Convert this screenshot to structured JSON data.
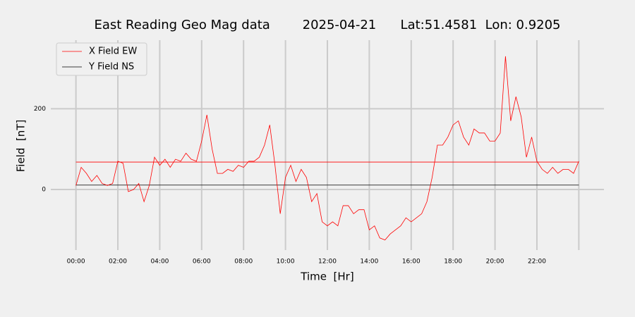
{
  "chart_data": {
    "type": "line",
    "title": "East Reading Geo Mag data        2025-04-21      Lat:51.4581  Lon: 0.9205",
    "xlabel": "Time  [Hr]",
    "ylabel": "Field  [nT]",
    "x": [
      0,
      0.25,
      0.5,
      0.75,
      1,
      1.25,
      1.5,
      1.75,
      2,
      2.25,
      2.5,
      2.75,
      3,
      3.25,
      3.5,
      3.75,
      4,
      4.25,
      4.5,
      4.75,
      5,
      5.25,
      5.5,
      5.75,
      6,
      6.25,
      6.5,
      6.75,
      7,
      7.25,
      7.5,
      7.75,
      8,
      8.25,
      8.5,
      8.75,
      9,
      9.25,
      9.5,
      9.75,
      10,
      10.25,
      10.5,
      10.75,
      11,
      11.25,
      11.5,
      11.75,
      12,
      12.25,
      12.5,
      12.75,
      13,
      13.25,
      13.5,
      13.75,
      14,
      14.25,
      14.5,
      14.75,
      15,
      15.25,
      15.5,
      15.75,
      16,
      16.25,
      16.5,
      16.75,
      17,
      17.25,
      17.5,
      17.75,
      18,
      18.25,
      18.5,
      18.75,
      19,
      19.25,
      19.5,
      19.75,
      20,
      20.25,
      20.5,
      20.75,
      21,
      21.25,
      21.5,
      21.75,
      22,
      22.25,
      22.5,
      22.75,
      23,
      23.25,
      23.5,
      23.75,
      24
    ],
    "series": [
      {
        "name": "X Field EW",
        "color": "#ff0000",
        "values": [
          10,
          55,
          40,
          20,
          35,
          15,
          10,
          15,
          70,
          65,
          -5,
          0,
          15,
          -30,
          10,
          80,
          60,
          75,
          55,
          75,
          70,
          90,
          75,
          70,
          120,
          185,
          100,
          40,
          40,
          50,
          45,
          60,
          55,
          70,
          70,
          80,
          110,
          160,
          60,
          -60,
          30,
          60,
          20,
          50,
          30,
          -30,
          -10,
          -80,
          -90,
          -80,
          -90,
          -40,
          -40,
          -60,
          -50,
          -50,
          -100,
          -90,
          -120,
          -125,
          -110,
          -100,
          -90,
          -70,
          -80,
          -70,
          -60,
          -30,
          30,
          110,
          110,
          130,
          160,
          170,
          130,
          110,
          150,
          140,
          140,
          120,
          120,
          140,
          330,
          170,
          230,
          180,
          80,
          130,
          70,
          50,
          40,
          55,
          40,
          50,
          50,
          40,
          70
        ]
      },
      {
        "name": "Y Field NS",
        "color": "#000000",
        "values": [
          11,
          11,
          11,
          11,
          11,
          11,
          11,
          11,
          11,
          11,
          11,
          11,
          11,
          11,
          11,
          11,
          11,
          11,
          11,
          11,
          11,
          11,
          11,
          11,
          11,
          11,
          11,
          11,
          11,
          11,
          11,
          11,
          11,
          11,
          11,
          11,
          11,
          11,
          11,
          11,
          11,
          11,
          11,
          11,
          11,
          11,
          11,
          11,
          11,
          11,
          11,
          11,
          11,
          11,
          11,
          11,
          11,
          11,
          11,
          11,
          11,
          11,
          11,
          11,
          11,
          11,
          11,
          11,
          11,
          11,
          11,
          11,
          11,
          11,
          11,
          11,
          11,
          11,
          11,
          11,
          11,
          11,
          11,
          11,
          11,
          11,
          11,
          11,
          11,
          11,
          11,
          11,
          11,
          11,
          11,
          11,
          11
        ]
      }
    ],
    "hlines": [
      {
        "y": 68,
        "color": "#ff0000"
      }
    ],
    "xlim": [
      -1.2,
      25.2
    ],
    "ylim": [
      -150,
      370
    ],
    "xticks": [
      {
        "value": 0,
        "label": "00:00"
      },
      {
        "value": 2,
        "label": "02:00"
      },
      {
        "value": 4,
        "label": "04:00"
      },
      {
        "value": 6,
        "label": "06:00"
      },
      {
        "value": 8,
        "label": "08:00"
      },
      {
        "value": 10,
        "label": "10:00"
      },
      {
        "value": 12,
        "label": "12:00"
      },
      {
        "value": 14,
        "label": "14:00"
      },
      {
        "value": 16,
        "label": "16:00"
      },
      {
        "value": 18,
        "label": "18:00"
      },
      {
        "value": 20,
        "label": "20:00"
      },
      {
        "value": 22,
        "label": "22:00"
      },
      {
        "value": 24,
        "label": null
      }
    ],
    "yticks": [
      0,
      200
    ],
    "grid": true,
    "legend": "upper left"
  }
}
